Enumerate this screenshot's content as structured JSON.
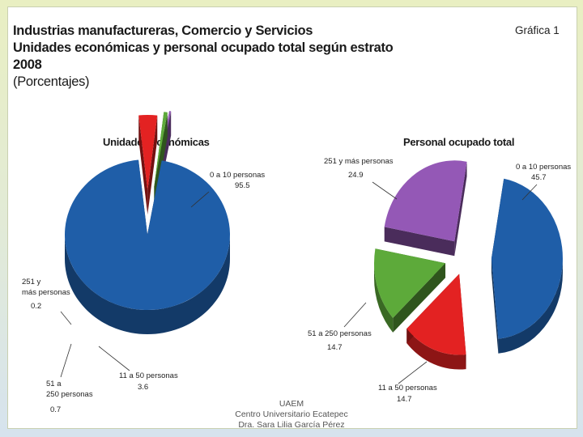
{
  "slide": {
    "title_lines": [
      "Industrias manufactureras, Comercio y Servicios",
      "Unidades económicas  y personal ocupado total según estrato",
      "2008"
    ],
    "subtitle": "(Porcentajes)",
    "figure_label": "Gráfica 1",
    "footer": [
      "UAEM",
      "Centro Universitario Ecatepec",
      "Dra. Sara Lilia García Pérez"
    ]
  },
  "colors": {
    "blue": "#1f5ea8",
    "red": "#e32222",
    "green": "#5daa3a",
    "purple": "#9458b6"
  },
  "chart_data": [
    {
      "type": "pie",
      "title": "Unidades económicas",
      "categories": [
        "0 a 10 personas",
        "11 a 50 personas",
        "51 a 250 personas",
        "251 y más personas"
      ],
      "values": [
        95.5,
        3.6,
        0.7,
        0.2
      ],
      "value_labels": [
        "95.5",
        "3.6",
        "0.7",
        "0.2"
      ],
      "exploded": [
        "11 a 50 personas",
        "51 a 250 personas",
        "251 y más personas"
      ]
    },
    {
      "type": "pie",
      "title": "Personal ocupado total",
      "categories": [
        "0 a 10 personas",
        "11 a 50 personas",
        "51 a 250 personas",
        "251 y más personas"
      ],
      "values": [
        45.7,
        14.7,
        14.7,
        24.9
      ],
      "value_labels": [
        "45.7",
        "14.7",
        "14.7",
        "24.9"
      ],
      "exploded": [
        "0 a 10 personas",
        "11 a 50 personas",
        "51 a 250 personas",
        "251 y más personas"
      ]
    }
  ]
}
